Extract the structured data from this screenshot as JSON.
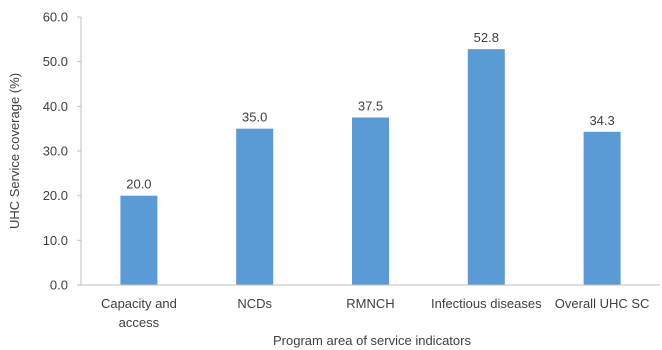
{
  "chart_data": {
    "type": "bar",
    "categories": [
      "Capacity and access",
      "NCDs",
      "RMNCH",
      "Infectious diseases",
      "Overall UHC SC"
    ],
    "category_lines": [
      [
        "Capacity and",
        "access"
      ],
      [
        "NCDs"
      ],
      [
        "RMNCH"
      ],
      [
        "Infectious diseases"
      ],
      [
        "Overall UHC SC"
      ]
    ],
    "values": [
      20.0,
      35.0,
      37.5,
      52.8,
      34.3
    ],
    "value_labels": [
      "20.0",
      "35.0",
      "37.5",
      "52.8",
      "34.3"
    ],
    "title": "",
    "xlabel": "Program area of service indicators",
    "ylabel": "UHC Service coverage (%)",
    "ylim": [
      0,
      60
    ],
    "yticks": [
      0,
      10,
      20,
      30,
      40,
      50,
      60
    ],
    "ytick_labels": [
      "0.0",
      "10.0",
      "20.0",
      "30.0",
      "40.0",
      "50.0",
      "60.0"
    ],
    "grid": false,
    "legend": "none",
    "bar_color": "#5b9bd5",
    "axis_color": "#bfbfbf",
    "text_color": "#404040"
  }
}
